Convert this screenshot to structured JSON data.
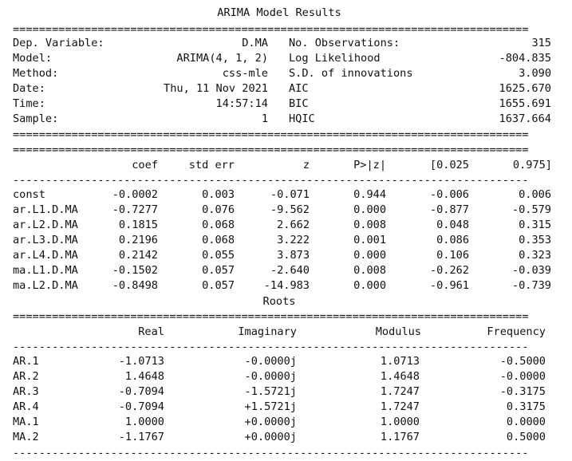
{
  "title": "ARIMA Model Results",
  "rule_double": "===============================================================================",
  "rule_single": "-------------------------------------------------------------------------------",
  "summary": [
    {
      "l_label": "Dep. Variable:",
      "l_value": "D.MA",
      "r_label": "No. Observations:",
      "r_value": "315"
    },
    {
      "l_label": "Model:",
      "l_value": "ARIMA(4, 1, 2)",
      "r_label": "Log Likelihood",
      "r_value": "-804.835"
    },
    {
      "l_label": "Method:",
      "l_value": "css-mle",
      "r_label": "S.D. of innovations",
      "r_value": "3.090"
    },
    {
      "l_label": "Date:",
      "l_value": "Thu, 11 Nov 2021",
      "r_label": "AIC",
      "r_value": "1625.670"
    },
    {
      "l_label": "Time:",
      "l_value": "14:57:14",
      "r_label": "BIC",
      "r_value": "1655.691"
    },
    {
      "l_label": "Sample:",
      "l_value": "1",
      "r_label": "HQIC",
      "r_value": "1637.664"
    }
  ],
  "coef_table": {
    "headers": [
      "coef",
      "std err",
      "z",
      "P>|z|",
      "[0.025",
      "0.975]"
    ],
    "rows": [
      {
        "name": "const",
        "coef": "-0.0002",
        "se": "0.003",
        "z": "-0.071",
        "p": "0.944",
        "lo": "-0.006",
        "hi": "0.006"
      },
      {
        "name": "ar.L1.D.MA",
        "coef": "-0.7277",
        "se": "0.076",
        "z": "-9.562",
        "p": "0.000",
        "lo": "-0.877",
        "hi": "-0.579"
      },
      {
        "name": "ar.L2.D.MA",
        "coef": "0.1815",
        "se": "0.068",
        "z": "2.662",
        "p": "0.008",
        "lo": "0.048",
        "hi": "0.315"
      },
      {
        "name": "ar.L3.D.MA",
        "coef": "0.2196",
        "se": "0.068",
        "z": "3.222",
        "p": "0.001",
        "lo": "0.086",
        "hi": "0.353"
      },
      {
        "name": "ar.L4.D.MA",
        "coef": "0.2142",
        "se": "0.055",
        "z": "3.873",
        "p": "0.000",
        "lo": "0.106",
        "hi": "0.323"
      },
      {
        "name": "ma.L1.D.MA",
        "coef": "-0.1502",
        "se": "0.057",
        "z": "-2.640",
        "p": "0.008",
        "lo": "-0.262",
        "hi": "-0.039"
      },
      {
        "name": "ma.L2.D.MA",
        "coef": "-0.8498",
        "se": "0.057",
        "z": "-14.983",
        "p": "0.000",
        "lo": "-0.961",
        "hi": "-0.739"
      }
    ]
  },
  "roots_title": "Roots",
  "roots_table": {
    "headers": [
      "Real",
      "Imaginary",
      "Modulus",
      "Frequency"
    ],
    "rows": [
      {
        "name": "AR.1",
        "real": "-1.0713",
        "imag": "-0.0000j",
        "mod": "1.0713",
        "freq": "-0.5000"
      },
      {
        "name": "AR.2",
        "real": "1.4648",
        "imag": "-0.0000j",
        "mod": "1.4648",
        "freq": "-0.0000"
      },
      {
        "name": "AR.3",
        "real": "-0.7094",
        "imag": "-1.5721j",
        "mod": "1.7247",
        "freq": "-0.3175"
      },
      {
        "name": "AR.4",
        "real": "-0.7094",
        "imag": "+1.5721j",
        "mod": "1.7247",
        "freq": "0.3175"
      },
      {
        "name": "MA.1",
        "real": "1.0000",
        "imag": "+0.0000j",
        "mod": "1.0000",
        "freq": "0.0000"
      },
      {
        "name": "MA.2",
        "real": "-1.1767",
        "imag": "+0.0000j",
        "mod": "1.1767",
        "freq": "0.5000"
      }
    ]
  }
}
